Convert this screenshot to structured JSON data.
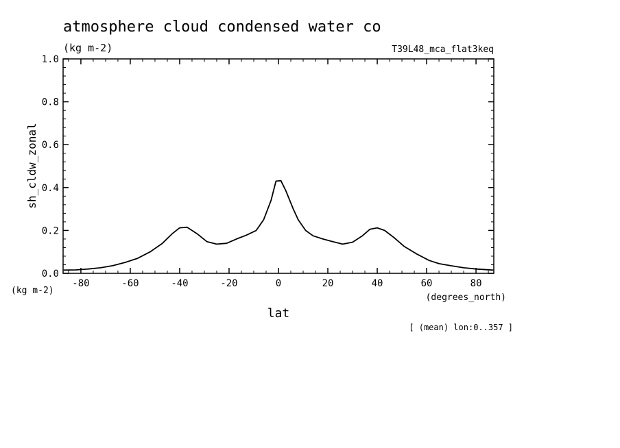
{
  "chart_data": {
    "type": "line",
    "title": "atmosphere cloud condensed water co",
    "units_label": "(kg m-2)",
    "experiment": "T39L48_mca_flat3keq",
    "ylabel": "sh_cldw_zonal",
    "yunits": "(kg m-2)",
    "xlabel": "lat",
    "xunits": "(degrees_north)",
    "footnote": "[ (mean) lon:0..357 ]",
    "xlim": [
      -87.2,
      87.2
    ],
    "ylim": [
      0.0,
      1.0
    ],
    "xticks": [
      -80,
      -60,
      -40,
      -20,
      0,
      20,
      40,
      60,
      80
    ],
    "xtick_labels": [
      "-80",
      "-60",
      "-40",
      "-20",
      "0",
      "20",
      "40",
      "60",
      "80"
    ],
    "yticks": [
      0.0,
      0.2,
      0.4,
      0.6,
      0.8,
      1.0
    ],
    "ytick_labels": [
      "0.0",
      "0.2",
      "0.4",
      "0.6",
      "0.8",
      "1.0"
    ],
    "series": [
      {
        "x": [
          -87,
          -82,
          -77,
          -72,
          -67,
          -62,
          -57,
          -52,
          -47,
          -43,
          -40,
          -37,
          -33,
          -29,
          -25,
          -21,
          -17,
          -13,
          -9,
          -6,
          -3,
          -1,
          1,
          3,
          6,
          8,
          11,
          14,
          18,
          22,
          26,
          30,
          34,
          37,
          40,
          43,
          47,
          51,
          56,
          61,
          65,
          70,
          75,
          80,
          87
        ],
        "y": [
          0.015,
          0.016,
          0.02,
          0.026,
          0.036,
          0.051,
          0.07,
          0.1,
          0.14,
          0.185,
          0.212,
          0.215,
          0.185,
          0.148,
          0.136,
          0.14,
          0.16,
          0.178,
          0.2,
          0.25,
          0.34,
          0.43,
          0.432,
          0.385,
          0.3,
          0.25,
          0.2,
          0.175,
          0.16,
          0.148,
          0.136,
          0.145,
          0.175,
          0.205,
          0.212,
          0.2,
          0.165,
          0.125,
          0.09,
          0.06,
          0.045,
          0.035,
          0.026,
          0.02,
          0.015
        ]
      }
    ]
  }
}
